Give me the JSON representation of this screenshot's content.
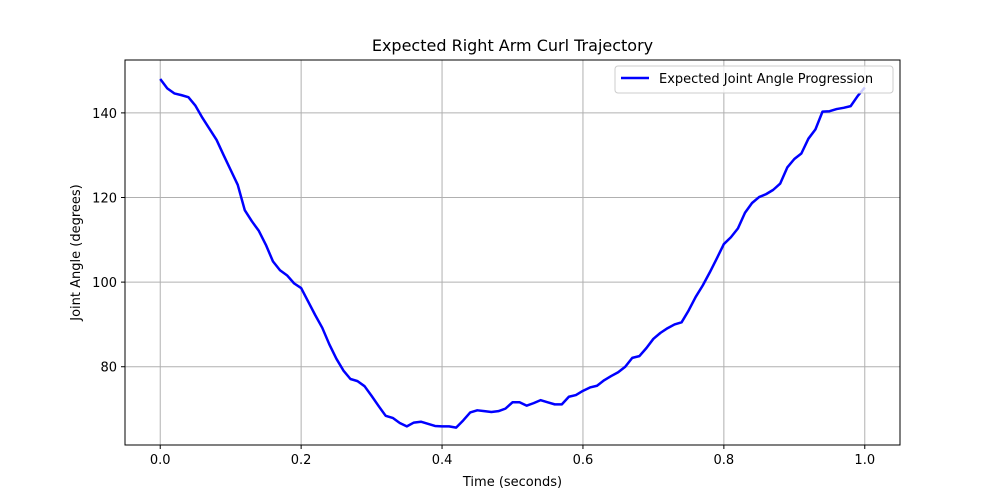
{
  "colors": {
    "series_line": "#0000ff",
    "grid": "#b0b0b0",
    "axes": "#000000",
    "background": "#ffffff"
  },
  "chart_data": {
    "type": "line",
    "title": "Expected Right Arm Curl Trajectory",
    "xlabel": "Time (seconds)",
    "ylabel": "Joint Angle (degrees)",
    "xlim": [
      -0.05,
      1.05
    ],
    "ylim": [
      61.5,
      152.5
    ],
    "xticks": [
      0.0,
      0.2,
      0.4,
      0.6,
      0.8,
      1.0
    ],
    "xtick_labels": [
      "0.0",
      "0.2",
      "0.4",
      "0.6",
      "0.8",
      "1.0"
    ],
    "yticks": [
      80,
      100,
      120,
      140
    ],
    "ytick_labels": [
      "80",
      "100",
      "120",
      "140"
    ],
    "grid": true,
    "legend": {
      "location": "upper right",
      "entries": [
        "Expected Joint Angle Progression"
      ]
    },
    "series": [
      {
        "name": "Expected Joint Angle Progression",
        "x": [
          0.0,
          0.01,
          0.02,
          0.03,
          0.04,
          0.05,
          0.06,
          0.07,
          0.08,
          0.09,
          0.1,
          0.11,
          0.12,
          0.13,
          0.14,
          0.15,
          0.16,
          0.17,
          0.18,
          0.19,
          0.2,
          0.21,
          0.22,
          0.23,
          0.24,
          0.25,
          0.26,
          0.27,
          0.28,
          0.29,
          0.3,
          0.31,
          0.32,
          0.33,
          0.34,
          0.35,
          0.36,
          0.37,
          0.38,
          0.39,
          0.4,
          0.41,
          0.42,
          0.43,
          0.44,
          0.45,
          0.46,
          0.47,
          0.48,
          0.49,
          0.5,
          0.51,
          0.52,
          0.53,
          0.54,
          0.55,
          0.56,
          0.57,
          0.58,
          0.59,
          0.6,
          0.61,
          0.62,
          0.63,
          0.64,
          0.65,
          0.66,
          0.67,
          0.68,
          0.69,
          0.7,
          0.71,
          0.72,
          0.73,
          0.74,
          0.75,
          0.76,
          0.77,
          0.78,
          0.79,
          0.8,
          0.81,
          0.82,
          0.83,
          0.84,
          0.85,
          0.86,
          0.87,
          0.88,
          0.89,
          0.9,
          0.91,
          0.92,
          0.93,
          0.94,
          0.95,
          0.96,
          0.97,
          0.98,
          0.99,
          1.0
        ],
        "y": [
          148.0,
          145.8,
          144.6,
          144.2,
          143.7,
          141.7,
          138.8,
          136.2,
          133.6,
          130.0,
          126.5,
          123.0,
          117.0,
          114.4,
          112.1,
          108.8,
          104.9,
          102.8,
          101.6,
          99.7,
          98.6,
          95.4,
          92.2,
          89.2,
          85.3,
          81.9,
          79.1,
          77.1,
          76.6,
          75.4,
          73.1,
          70.7,
          68.4,
          67.9,
          66.7,
          65.9,
          66.8,
          67.0,
          66.5,
          66.0,
          65.9,
          65.9,
          65.6,
          67.3,
          69.2,
          69.7,
          69.5,
          69.3,
          69.5,
          70.1,
          71.6,
          71.6,
          70.8,
          71.4,
          72.1,
          71.6,
          71.1,
          71.1,
          72.9,
          73.3,
          74.3,
          75.1,
          75.5,
          76.8,
          77.8,
          78.7,
          80.0,
          82.1,
          82.5,
          84.4,
          86.6,
          88.0,
          89.1,
          90.0,
          90.5,
          93.3,
          96.5,
          99.2,
          102.3,
          105.6,
          109.0,
          110.6,
          112.7,
          116.4,
          118.7,
          120.1,
          120.8,
          121.8,
          123.3,
          127.1,
          129.1,
          130.4,
          133.9,
          136.1,
          140.3,
          140.4,
          140.9,
          141.2,
          141.6,
          144.0,
          146.0
        ]
      }
    ]
  }
}
